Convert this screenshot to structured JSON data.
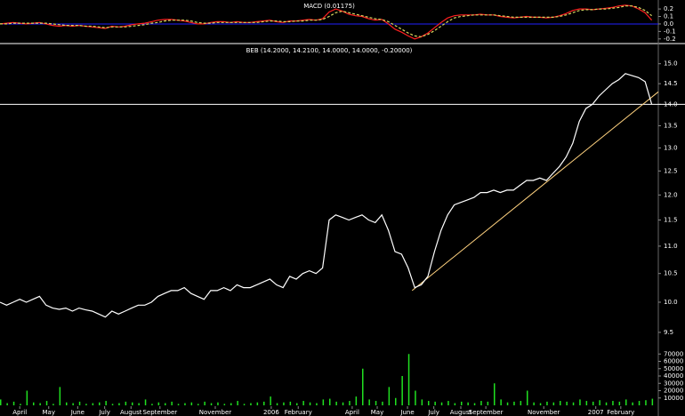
{
  "chart_data": [
    {
      "type": "line",
      "title": "MACD (0.01175)",
      "x": [
        0,
        1,
        2,
        3,
        4,
        5,
        6,
        7,
        8,
        9,
        10,
        11,
        12,
        13,
        14,
        15,
        16,
        17,
        18,
        19,
        20,
        21,
        22,
        23,
        24,
        25,
        26,
        27,
        28,
        29,
        30,
        31,
        32,
        33,
        34,
        35,
        36,
        37,
        38,
        39,
        40,
        41,
        42,
        43,
        44,
        45,
        46,
        47,
        48,
        49,
        50,
        51,
        52,
        53,
        54,
        55,
        56,
        57,
        58,
        59,
        60,
        61,
        62,
        63,
        64,
        65,
        66,
        67,
        68,
        69,
        70,
        71,
        72,
        73,
        74,
        75,
        76,
        77,
        78,
        79,
        80,
        81,
        82,
        83,
        84,
        85,
        86,
        87,
        88,
        89,
        90,
        91,
        92,
        93,
        94,
        95,
        96,
        97,
        98,
        99
      ],
      "series": [
        {
          "name": "MACD",
          "color": "#ff2020",
          "values": [
            0.0,
            0.01,
            0.02,
            0.01,
            0.0,
            0.01,
            0.02,
            0.0,
            -0.02,
            -0.03,
            -0.02,
            -0.03,
            -0.02,
            -0.03,
            -0.04,
            -0.05,
            -0.06,
            -0.03,
            -0.04,
            -0.03,
            -0.01,
            0.0,
            0.01,
            0.03,
            0.05,
            0.06,
            0.06,
            0.05,
            0.04,
            0.02,
            0.0,
            0.0,
            0.02,
            0.03,
            0.03,
            0.02,
            0.03,
            0.02,
            0.02,
            0.03,
            0.04,
            0.05,
            0.03,
            0.02,
            0.04,
            0.04,
            0.05,
            0.06,
            0.05,
            0.07,
            0.16,
            0.2,
            0.17,
            0.13,
            0.11,
            0.1,
            0.07,
            0.05,
            0.06,
            0.0,
            -0.07,
            -0.11,
            -0.16,
            -0.2,
            -0.17,
            -0.12,
            -0.05,
            0.02,
            0.08,
            0.11,
            0.12,
            0.12,
            0.12,
            0.13,
            0.12,
            0.12,
            0.1,
            0.09,
            0.08,
            0.09,
            0.1,
            0.09,
            0.09,
            0.08,
            0.09,
            0.11,
            0.14,
            0.18,
            0.2,
            0.2,
            0.19,
            0.2,
            0.21,
            0.22,
            0.24,
            0.25,
            0.24,
            0.2,
            0.15,
            0.05
          ]
        },
        {
          "name": "Signal",
          "color": "#d8d860",
          "values": [
            0.0,
            0.0,
            0.01,
            0.01,
            0.01,
            0.01,
            0.01,
            0.01,
            0.0,
            -0.01,
            -0.02,
            -0.02,
            -0.02,
            -0.03,
            -0.03,
            -0.04,
            -0.05,
            -0.04,
            -0.04,
            -0.04,
            -0.03,
            -0.02,
            -0.01,
            0.01,
            0.02,
            0.04,
            0.05,
            0.05,
            0.05,
            0.04,
            0.02,
            0.01,
            0.01,
            0.02,
            0.02,
            0.02,
            0.02,
            0.02,
            0.02,
            0.02,
            0.03,
            0.04,
            0.04,
            0.03,
            0.03,
            0.04,
            0.04,
            0.05,
            0.05,
            0.06,
            0.1,
            0.15,
            0.17,
            0.15,
            0.13,
            0.11,
            0.09,
            0.07,
            0.06,
            0.03,
            -0.02,
            -0.07,
            -0.12,
            -0.16,
            -0.17,
            -0.14,
            -0.09,
            -0.03,
            0.03,
            0.08,
            0.1,
            0.11,
            0.12,
            0.12,
            0.12,
            0.12,
            0.11,
            0.1,
            0.09,
            0.09,
            0.09,
            0.09,
            0.09,
            0.09,
            0.09,
            0.1,
            0.12,
            0.15,
            0.18,
            0.19,
            0.19,
            0.2,
            0.2,
            0.21,
            0.22,
            0.24,
            0.24,
            0.22,
            0.18,
            0.11
          ]
        }
      ],
      "zero_line_color": "#2020ff",
      "xlim": [
        0,
        100
      ],
      "ylim": [
        -0.25,
        0.32
      ],
      "yticks": [
        {
          "value": 0.2,
          "label": "0.2"
        },
        {
          "value": 0.1,
          "label": "0.1"
        },
        {
          "value": 0,
          "label": "0.0"
        },
        {
          "value": -0.1,
          "label": "-0.1"
        },
        {
          "value": -0.2,
          "label": "-0.2"
        }
      ]
    },
    {
      "type": "line",
      "title": "BEB (14.2000, 14.2100, 14.0000, 14.0000, -0.20000)",
      "log_scale": true,
      "x": [
        0,
        1,
        2,
        3,
        4,
        5,
        6,
        7,
        8,
        9,
        10,
        11,
        12,
        13,
        14,
        15,
        16,
        17,
        18,
        19,
        20,
        21,
        22,
        23,
        24,
        25,
        26,
        27,
        28,
        29,
        30,
        31,
        32,
        33,
        34,
        35,
        36,
        37,
        38,
        39,
        40,
        41,
        42,
        43,
        44,
        45,
        46,
        47,
        48,
        49,
        50,
        51,
        52,
        53,
        54,
        55,
        56,
        57,
        58,
        59,
        60,
        61,
        62,
        63,
        64,
        65,
        66,
        67,
        68,
        69,
        70,
        71,
        72,
        73,
        74,
        75,
        76,
        77,
        78,
        79,
        80,
        81,
        82,
        83,
        84,
        85,
        86,
        87,
        88,
        89,
        90,
        91,
        92,
        93,
        94,
        95,
        96,
        97,
        98,
        99
      ],
      "series": [
        {
          "name": "BEB",
          "color": "#ffffff",
          "values": [
            10.0,
            9.95,
            10.0,
            10.05,
            10.0,
            10.05,
            10.1,
            9.95,
            9.9,
            9.88,
            9.9,
            9.85,
            9.9,
            9.87,
            9.85,
            9.8,
            9.75,
            9.85,
            9.8,
            9.85,
            9.9,
            9.95,
            9.95,
            10.0,
            10.1,
            10.15,
            10.2,
            10.2,
            10.25,
            10.15,
            10.1,
            10.05,
            10.2,
            10.2,
            10.25,
            10.2,
            10.3,
            10.25,
            10.25,
            10.3,
            10.35,
            10.4,
            10.3,
            10.25,
            10.45,
            10.4,
            10.5,
            10.55,
            10.5,
            10.6,
            11.5,
            11.6,
            11.55,
            11.5,
            11.55,
            11.6,
            11.5,
            11.45,
            11.6,
            11.3,
            10.9,
            10.85,
            10.6,
            10.25,
            10.3,
            10.45,
            10.9,
            11.3,
            11.6,
            11.8,
            11.85,
            11.9,
            11.95,
            12.05,
            12.05,
            12.1,
            12.05,
            12.1,
            12.1,
            12.2,
            12.3,
            12.3,
            12.35,
            12.3,
            12.45,
            12.6,
            12.8,
            13.1,
            13.6,
            13.9,
            14.0,
            14.2,
            14.35,
            14.5,
            14.6,
            14.75,
            14.7,
            14.65,
            14.55,
            14.0
          ]
        }
      ],
      "hline": 14.0,
      "hline_color": "#ffffff",
      "trendline": {
        "x": [
          62.6,
          100
        ],
        "y": [
          10.2,
          14.3
        ],
        "color": "#ffd27f"
      },
      "xlim": [
        0,
        100
      ],
      "ylim": [
        9.3,
        15.5
      ],
      "yticks": [
        {
          "value": 15,
          "label": "15.0"
        },
        14.5,
        {
          "value": 14,
          "label": "14.0"
        },
        13.5,
        {
          "value": 13,
          "label": "13.0"
        },
        12.5,
        {
          "value": 12,
          "label": "12.0"
        },
        11.5,
        {
          "value": 11,
          "label": "11.0"
        },
        10.5,
        {
          "value": 10,
          "label": "10.0"
        },
        9.5
      ]
    },
    {
      "type": "bar",
      "x": [
        0,
        1,
        2,
        3,
        4,
        5,
        6,
        7,
        8,
        9,
        10,
        11,
        12,
        13,
        14,
        15,
        16,
        17,
        18,
        19,
        20,
        21,
        22,
        23,
        24,
        25,
        26,
        27,
        28,
        29,
        30,
        31,
        32,
        33,
        34,
        35,
        36,
        37,
        38,
        39,
        40,
        41,
        42,
        43,
        44,
        45,
        46,
        47,
        48,
        49,
        50,
        51,
        52,
        53,
        54,
        55,
        56,
        57,
        58,
        59,
        60,
        61,
        62,
        63,
        64,
        65,
        66,
        67,
        68,
        69,
        70,
        71,
        72,
        73,
        74,
        75,
        76,
        77,
        78,
        79,
        80,
        81,
        82,
        83,
        84,
        85,
        86,
        87,
        88,
        89,
        90,
        91,
        92,
        93,
        94,
        95,
        96,
        97,
        98,
        99
      ],
      "series": [
        {
          "name": "Volume",
          "color": "#20e020",
          "values": [
            8000,
            3000,
            5000,
            2000,
            20000,
            4000,
            3000,
            6000,
            2000,
            25000,
            4000,
            3000,
            5000,
            2000,
            3000,
            4000,
            6000,
            2000,
            3000,
            5000,
            4000,
            3000,
            8000,
            2000,
            4000,
            3000,
            5000,
            2000,
            3000,
            4000,
            2000,
            5000,
            3000,
            4000,
            2000,
            3000,
            6000,
            2000,
            3000,
            4000,
            5000,
            12000,
            3000,
            4000,
            5000,
            3000,
            6000,
            4000,
            3000,
            8000,
            9000,
            5000,
            4000,
            6000,
            12000,
            50000,
            8000,
            6000,
            5000,
            25000,
            10000,
            40000,
            70000,
            20000,
            8000,
            6000,
            5000,
            4000,
            6000,
            3000,
            5000,
            4000,
            3000,
            6000,
            5000,
            30000,
            8000,
            4000,
            5000,
            6000,
            20000,
            4000,
            3000,
            5000,
            4000,
            6000,
            5000,
            4000,
            8000,
            6000,
            5000,
            7000,
            4000,
            6000,
            5000,
            8000,
            4000,
            6000,
            7000,
            9000
          ]
        }
      ],
      "xlim": [
        0,
        100
      ],
      "ylim": [
        0,
        80000
      ],
      "yticks": [
        70000,
        60000,
        50000,
        40000,
        30000,
        20000,
        10000
      ],
      "xticks": [
        {
          "value": 3.0,
          "label": "April"
        },
        {
          "value": 7.4,
          "label": "May"
        },
        {
          "value": 11.8,
          "label": "June"
        },
        {
          "value": 15.9,
          "label": "July"
        },
        {
          "value": 19.9,
          "label": "August"
        },
        {
          "value": 24.3,
          "label": "September"
        },
        {
          "value": 32.7,
          "label": "November"
        },
        {
          "value": 41.2,
          "label": "2006"
        },
        {
          "value": 45.3,
          "label": "February"
        },
        {
          "value": 53.5,
          "label": "April"
        },
        {
          "value": 57.3,
          "label": "May"
        },
        {
          "value": 61.9,
          "label": "June"
        },
        {
          "value": 65.9,
          "label": "July"
        },
        {
          "value": 70.0,
          "label": "August"
        },
        {
          "value": 73.8,
          "label": "September"
        },
        {
          "value": 82.6,
          "label": "November"
        },
        {
          "value": 90.5,
          "label": "2007"
        },
        {
          "value": 94.3,
          "label": "February"
        }
      ]
    }
  ]
}
